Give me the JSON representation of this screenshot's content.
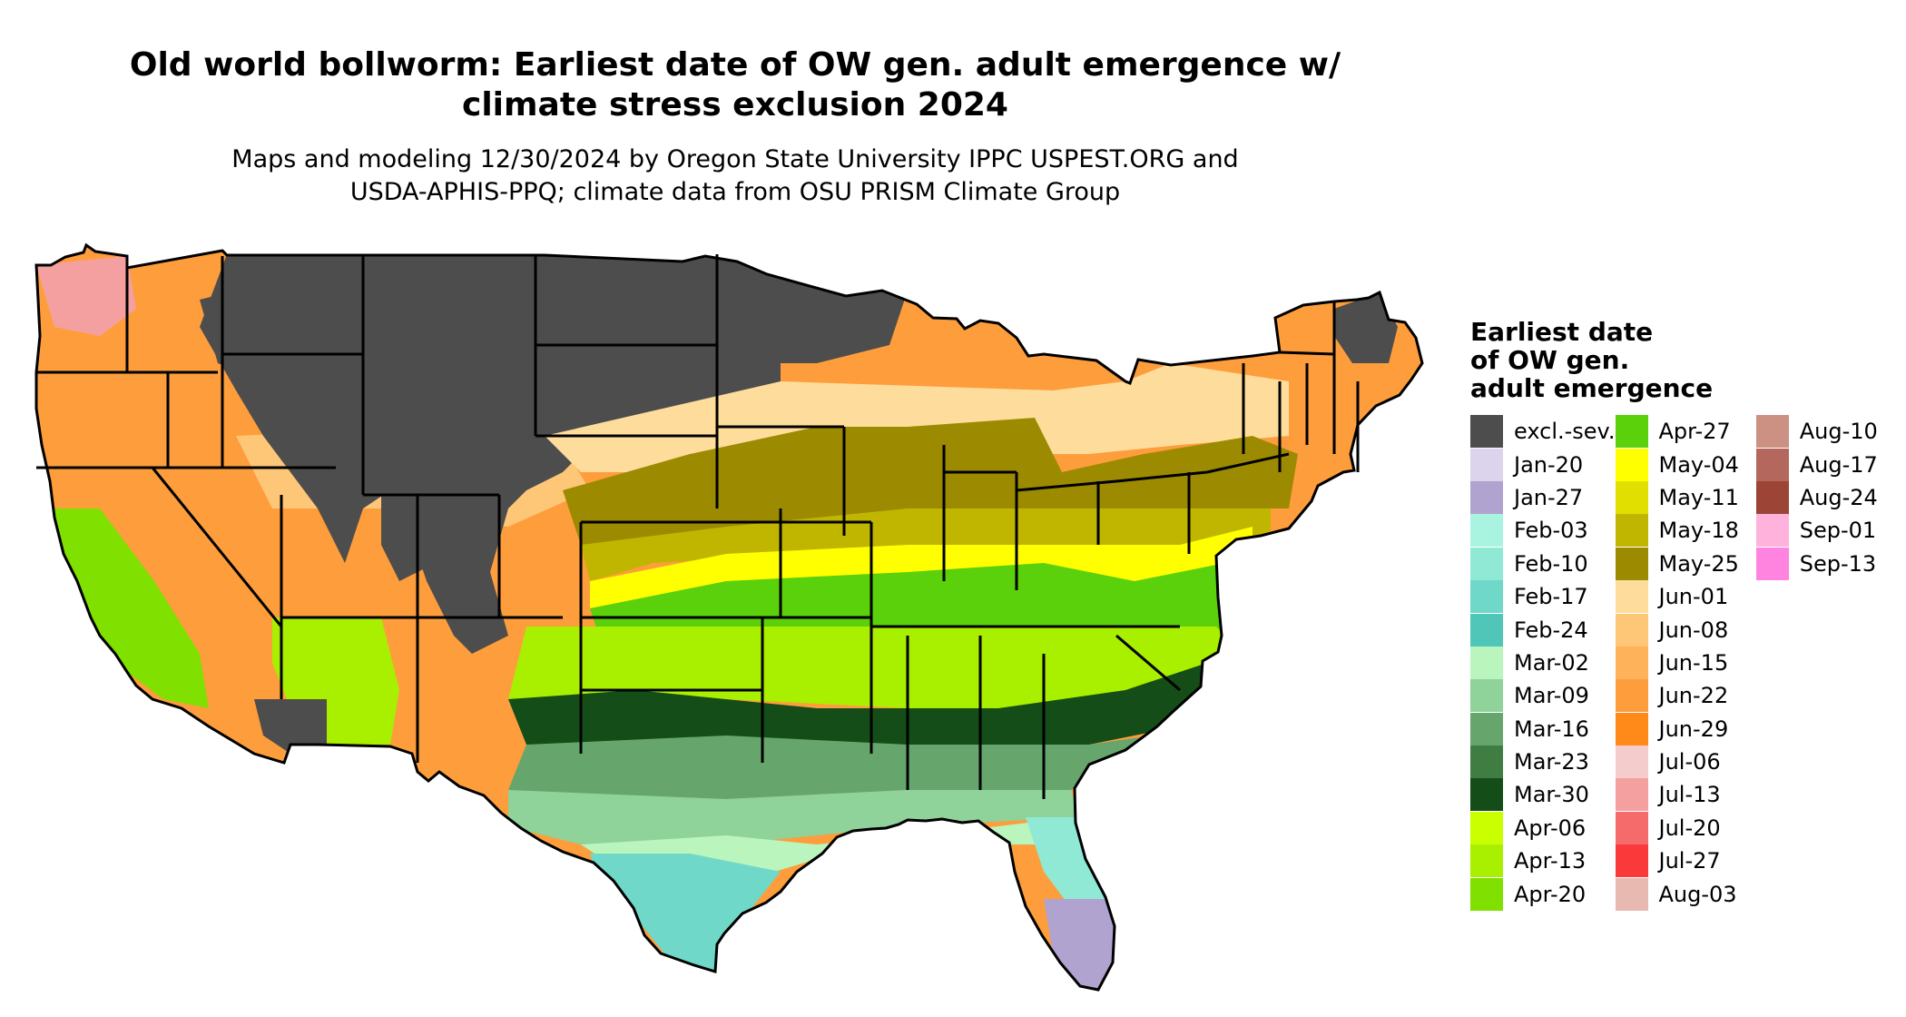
{
  "header": {
    "title_line1": "Old world bollworm: Earliest date of OW gen. adult emergence w/",
    "title_line2": "climate stress exclusion 2024",
    "subtitle_line1": "Maps and modeling 12/30/2024 by Oregon State University IPPC USPEST.ORG and",
    "subtitle_line2": "USDA-APHIS-PPQ; climate data from OSU PRISM Climate Group"
  },
  "legend": {
    "title_line1": "Earliest date",
    "title_line2": "of OW gen.",
    "title_line3": "adult emergence",
    "columns": [
      [
        {
          "label": "excl.-sev.",
          "color": "#4d4d4d"
        },
        {
          "label": "Jan-20",
          "color": "#dcd3ec"
        },
        {
          "label": "Jan-27",
          "color": "#b1a3cf"
        },
        {
          "label": "Feb-03",
          "color": "#a9f4e0"
        },
        {
          "label": "Feb-10",
          "color": "#8fe9d5"
        },
        {
          "label": "Feb-17",
          "color": "#70d8c8"
        },
        {
          "label": "Feb-24",
          "color": "#4fc6b8"
        },
        {
          "label": "Mar-02",
          "color": "#b9f5bd"
        },
        {
          "label": "Mar-09",
          "color": "#8fd29a"
        },
        {
          "label": "Mar-16",
          "color": "#66a66c"
        },
        {
          "label": "Mar-23",
          "color": "#3f7d42"
        },
        {
          "label": "Mar-30",
          "color": "#144d18"
        },
        {
          "label": "Apr-06",
          "color": "#caff00"
        },
        {
          "label": "Apr-13",
          "color": "#a8ef00"
        },
        {
          "label": "Apr-20",
          "color": "#80e000"
        }
      ],
      [
        {
          "label": "Apr-27",
          "color": "#5ad10a"
        },
        {
          "label": "May-04",
          "color": "#ffff00"
        },
        {
          "label": "May-11",
          "color": "#e1df00"
        },
        {
          "label": "May-18",
          "color": "#c0b600"
        },
        {
          "label": "May-25",
          "color": "#9c8b00"
        },
        {
          "label": "Jun-01",
          "color": "#fedd9c"
        },
        {
          "label": "Jun-08",
          "color": "#fec677"
        },
        {
          "label": "Jun-15",
          "color": "#feb35a"
        },
        {
          "label": "Jun-22",
          "color": "#fe9d3c"
        },
        {
          "label": "Jun-29",
          "color": "#ff8a1a"
        },
        {
          "label": "Jul-06",
          "color": "#f5cccc"
        },
        {
          "label": "Jul-13",
          "color": "#f5a0a0"
        },
        {
          "label": "Jul-20",
          "color": "#f56a6a"
        },
        {
          "label": "Jul-27",
          "color": "#fa3a3a"
        },
        {
          "label": "Aug-03",
          "color": "#e8b9b0"
        }
      ],
      [
        {
          "label": "Aug-10",
          "color": "#cd9183"
        },
        {
          "label": "Aug-17",
          "color": "#b4675c"
        },
        {
          "label": "Aug-24",
          "color": "#9c4537"
        },
        {
          "label": "Sep-01",
          "color": "#ffb3dc"
        },
        {
          "label": "Sep-13",
          "color": "#ff84e0"
        }
      ]
    ]
  },
  "map_colors": {
    "excluded": "#4d4d4d",
    "border": "#000000"
  }
}
